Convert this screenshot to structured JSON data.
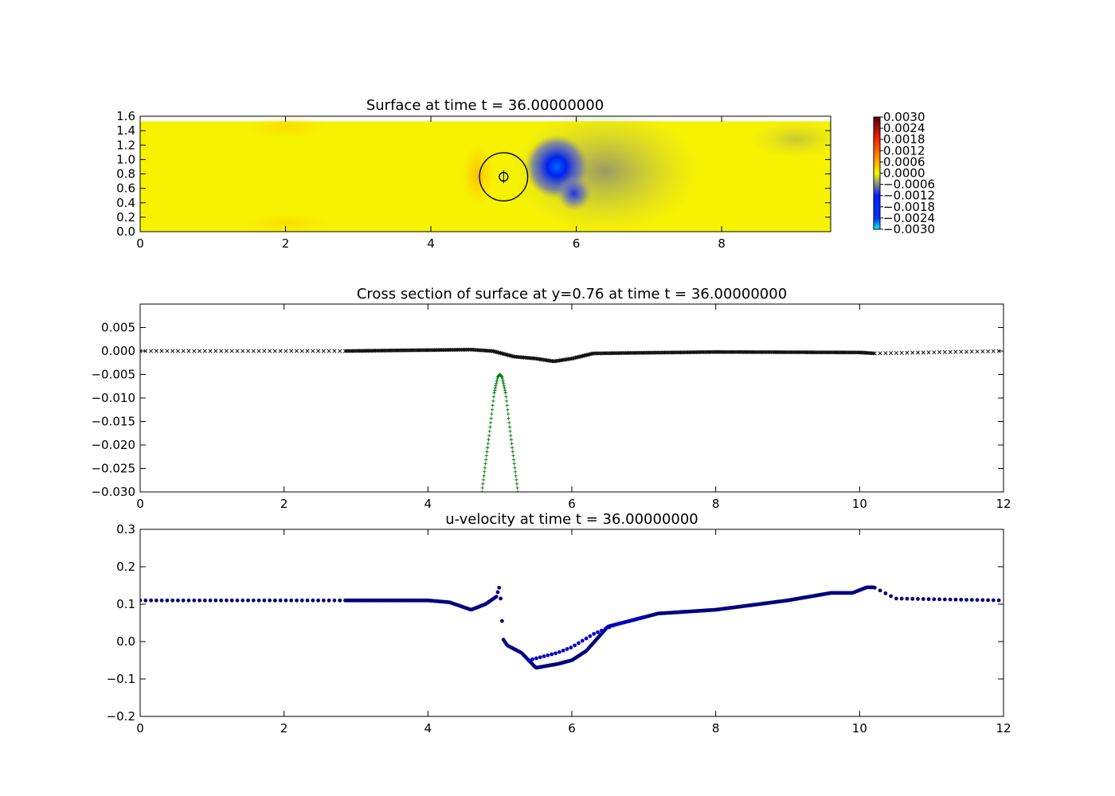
{
  "chart_data": [
    {
      "type": "heatmap",
      "title": "Surface at time t =    36.00000000",
      "xlim": [
        0,
        9.5
      ],
      "ylim": [
        0,
        1.6
      ],
      "x_ticks": [
        "0",
        "2",
        "4",
        "6",
        "8"
      ],
      "y_ticks": [
        "0.0",
        "0.2",
        "0.4",
        "0.6",
        "0.8",
        "1.0",
        "1.2",
        "1.4",
        "1.6"
      ],
      "domain": {
        "x": [
          0,
          9.5
        ],
        "y": [
          0,
          1.53
        ]
      },
      "colorbar": {
        "range": [
          -0.003,
          0.003
        ],
        "ticks": [
          "0.0030",
          "0.0024",
          "0.0018",
          "0.0012",
          "0.0006",
          "0.0000",
          "−0.0006",
          "−0.0012",
          "−0.0018",
          "−0.0024",
          "−0.0030"
        ]
      },
      "features": [
        {
          "type": "trough",
          "x": 5.73,
          "y": 0.9,
          "value": -0.0026
        },
        {
          "type": "trough",
          "x": 5.97,
          "y": 0.53,
          "value": -0.0016
        },
        {
          "type": "circle_outline",
          "x": 5.0,
          "y": 0.76,
          "r": 0.36
        },
        {
          "type": "circle_outline",
          "x": 5.0,
          "y": 0.76,
          "r": 0.06
        }
      ],
      "colors": {
        "positive": "#ff2200",
        "zero": "#f7f700",
        "negative": "#0022ff"
      }
    },
    {
      "type": "scatter",
      "title": "Cross section of surface at y=0.76 at time t =    36.00000000",
      "xlim": [
        0,
        12
      ],
      "ylim": [
        -0.03,
        0.01
      ],
      "x_ticks": [
        "0",
        "2",
        "4",
        "6",
        "8",
        "10",
        "12"
      ],
      "y_ticks": [
        "−0.030",
        "−0.025",
        "−0.020",
        "−0.015",
        "−0.010",
        "−0.005",
        "0.000",
        "0.005"
      ],
      "series": [
        {
          "marker": "x",
          "color": "#000000",
          "x": [
            0,
            2.8,
            4.6,
            4.9,
            5.2,
            5.5,
            5.75,
            6.0,
            6.3,
            8.0,
            10.0,
            10.2,
            12
          ],
          "y": [
            0.0,
            0.0,
            0.0003,
            0.0,
            -0.0012,
            -0.0016,
            -0.0022,
            -0.0016,
            -0.0005,
            -0.0002,
            -0.0003,
            -0.0005,
            0.0
          ]
        },
        {
          "marker": "+",
          "color": "#007f00",
          "x": [
            4.75,
            4.85,
            4.92,
            4.97,
            5.0,
            5.03,
            5.08,
            5.15,
            5.25
          ],
          "y": [
            -0.03,
            -0.018,
            -0.009,
            -0.0055,
            -0.005,
            -0.0055,
            -0.009,
            -0.018,
            -0.03
          ]
        }
      ]
    },
    {
      "type": "scatter",
      "title": "u-velocity at time t =    36.00000000",
      "xlim": [
        0,
        12
      ],
      "ylim": [
        -0.2,
        0.3
      ],
      "x_ticks": [
        "0",
        "2",
        "4",
        "6",
        "8",
        "10",
        "12"
      ],
      "y_ticks": [
        "−0.2",
        "−0.1",
        "0.0",
        "0.1",
        "0.2",
        "0.3"
      ],
      "series": [
        {
          "marker": "o",
          "color": "#00007f",
          "x": [
            0,
            2.8,
            4.0,
            4.3,
            4.6,
            4.8,
            4.95,
            5.0,
            5.02,
            5.05,
            5.1,
            5.3,
            5.5,
            5.8,
            6.0,
            6.2,
            6.5,
            6.8,
            7.2,
            8.0,
            9.0,
            9.6,
            9.9,
            10.1,
            10.2,
            10.5,
            12
          ],
          "y": [
            0.11,
            0.11,
            0.11,
            0.105,
            0.085,
            0.1,
            0.12,
            0.15,
            0.08,
            0.005,
            -0.01,
            -0.03,
            -0.07,
            -0.06,
            -0.05,
            -0.025,
            0.04,
            0.055,
            0.075,
            0.085,
            0.11,
            0.13,
            0.13,
            0.145,
            0.145,
            0.115,
            0.11
          ]
        },
        {
          "marker": "o",
          "color": "#0000cc",
          "x": [
            5.4,
            5.8,
            6.0,
            6.3,
            6.6,
            7.0
          ],
          "y": [
            -0.05,
            -0.03,
            -0.015,
            0.02,
            0.045,
            0.065
          ]
        }
      ]
    }
  ]
}
